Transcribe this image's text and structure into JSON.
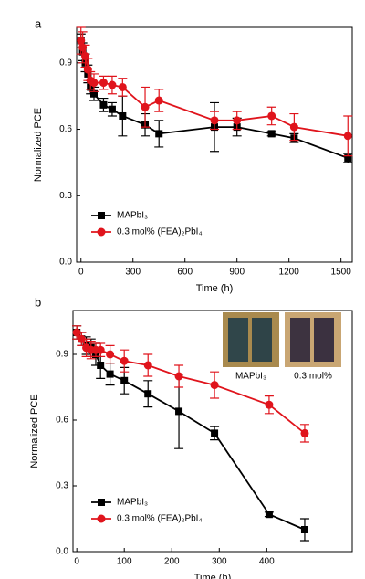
{
  "chart_data": [
    {
      "type": "line",
      "panel_label": "a",
      "ylabel": "Normalized PCE",
      "xlabel": "Time (h)",
      "xlim": [
        -25,
        1565
      ],
      "xticks": [
        0,
        300,
        600,
        900,
        1200,
        1500
      ],
      "ylim": [
        0,
        1.06
      ],
      "yticks": [
        {
          "value": 0,
          "label": "0.0"
        },
        0.3,
        0.6,
        0.9
      ],
      "legend": "lower left",
      "series": [
        {
          "name": "MAPbI₃",
          "color": "#000000",
          "marker": "square",
          "x": [
            0,
            10,
            25,
            40,
            55,
            75,
            130,
            180,
            240,
            370,
            450,
            770,
            900,
            1100,
            1230,
            1540
          ],
          "values": [
            1.0,
            0.95,
            0.9,
            0.85,
            0.79,
            0.76,
            0.71,
            0.69,
            0.66,
            0.62,
            0.58,
            0.61,
            0.61,
            0.58,
            0.56,
            0.47
          ],
          "errors": [
            0.03,
            0.04,
            0.04,
            0.04,
            0.03,
            0.03,
            0.03,
            0.03,
            0.09,
            0.05,
            0.06,
            0.11,
            0.04,
            0.01,
            0.02,
            0.02
          ]
        },
        {
          "name": "0.3 mol% (FEA)₂PbI₄",
          "color": "#e0141c",
          "marker": "circle",
          "x": [
            0,
            10,
            25,
            40,
            55,
            75,
            130,
            180,
            240,
            370,
            450,
            770,
            900,
            1100,
            1230,
            1540
          ],
          "values": [
            1.0,
            0.97,
            0.93,
            0.87,
            0.82,
            0.81,
            0.81,
            0.8,
            0.79,
            0.7,
            0.73,
            0.64,
            0.64,
            0.66,
            0.61,
            0.57
          ],
          "errors": [
            0.06,
            0.07,
            0.05,
            0.05,
            0.04,
            0.04,
            0.03,
            0.04,
            0.04,
            0.09,
            0.05,
            0.04,
            0.04,
            0.04,
            0.06,
            0.09
          ]
        }
      ]
    },
    {
      "type": "line",
      "panel_label": "b",
      "ylabel": "Normalized PCE",
      "xlabel": "Time (h)",
      "xlim": [
        -8,
        580
      ],
      "xticks": [
        0,
        100,
        200,
        300,
        400
      ],
      "ylim": [
        0,
        1.1
      ],
      "yticks": [
        {
          "value": 0,
          "label": "0.0"
        },
        0.3,
        0.6,
        0.9
      ],
      "legend": "lower left",
      "inset_labels": [
        "MAPbI₃",
        "0.3 mol%"
      ],
      "series": [
        {
          "name": "MAPbI₃",
          "color": "#000000",
          "marker": "square",
          "x": [
            0,
            10,
            20,
            30,
            40,
            50,
            70,
            100,
            150,
            215,
            290,
            405,
            480
          ],
          "values": [
            1.0,
            0.97,
            0.94,
            0.93,
            0.9,
            0.85,
            0.81,
            0.78,
            0.72,
            0.64,
            0.54,
            0.17,
            0.1
          ],
          "errors": [
            0.03,
            0.03,
            0.04,
            0.04,
            0.05,
            0.06,
            0.05,
            0.06,
            0.06,
            0.17,
            0.03,
            0.01,
            0.05
          ]
        },
        {
          "name": "0.3 mol% (FEA)₂PbI₄",
          "color": "#e0141c",
          "marker": "circle",
          "x": [
            0,
            10,
            20,
            30,
            40,
            50,
            70,
            100,
            150,
            215,
            290,
            405,
            480
          ],
          "values": [
            1.0,
            0.97,
            0.93,
            0.92,
            0.92,
            0.92,
            0.9,
            0.87,
            0.85,
            0.8,
            0.76,
            0.67,
            0.54
          ],
          "errors": [
            0.03,
            0.03,
            0.04,
            0.04,
            0.03,
            0.03,
            0.04,
            0.05,
            0.05,
            0.05,
            0.06,
            0.04,
            0.04
          ]
        }
      ]
    }
  ]
}
